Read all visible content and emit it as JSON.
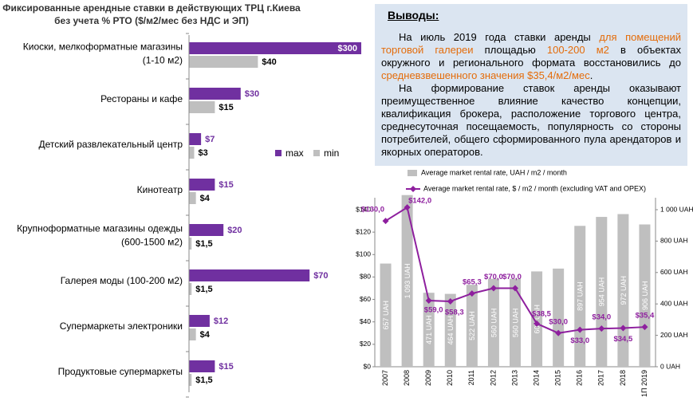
{
  "chart_data": [
    {
      "type": "barh",
      "title": [
        "Фиксированные арендные ставки в действующих ТРЦ г.Киева",
        "без учета % РТО ($/м2/мес без НДС и ЭП)"
      ],
      "categories": [
        "Киоски, мелкоформатные магазины\n(1-10 м2)",
        "Рестораны и кафе",
        "Детский развлекательный центр",
        "Кинотеатр",
        "Крупноформатные магазины одежды\n(600-1500 м2)",
        "Галерея моды (100-200 м2)",
        "Супермаркеты электроники",
        "Продуктовые супермаркеты"
      ],
      "series": [
        {
          "name": "max",
          "color": "#7030a0",
          "values": [
            300,
            30,
            7,
            15,
            20,
            70,
            12,
            15
          ],
          "value_labels": [
            "$300",
            "$30",
            "$7",
            "$15",
            "$20",
            "$70",
            "$12",
            "$15"
          ]
        },
        {
          "name": "min",
          "color": "#bfbfbf",
          "values": [
            40,
            15,
            3,
            4,
            1.5,
            1.5,
            4,
            1.5
          ],
          "value_labels": [
            "$40",
            "$15",
            "$3",
            "$4",
            "$1,5",
            "$1,5",
            "$4",
            "$1,5"
          ]
        }
      ],
      "xlim": [
        0,
        100
      ]
    },
    {
      "type": "combo",
      "categories": [
        "2007",
        "2008",
        "2009",
        "2010",
        "2011",
        "2012",
        "2013",
        "2014",
        "2015",
        "2016",
        "2017",
        "2018",
        "1П 2019"
      ],
      "series": [
        {
          "name": "Average market rental rate, UAH / m2 / month",
          "type": "bar",
          "axis": "y2",
          "color": "#bfbfbf",
          "values": [
            657,
            1093,
            471,
            464,
            522,
            560,
            560,
            607,
            625,
            897,
            954,
            972,
            906
          ],
          "value_labels": [
            "657 UAH",
            "1 093 UAH",
            "471 UAH",
            "464 UAH",
            "522 UAH",
            "560 UAH",
            "560 UAH",
            "607 UAH",
            null,
            "897 UAH",
            "954 UAH",
            "972 UAH",
            "906 UAH"
          ]
        },
        {
          "name": "Average market rental rate, $ / m2 / month (excluding VAT and OPEX)",
          "type": "line",
          "color": "#8e1f9e",
          "values": [
            130,
            142,
            59,
            58.3,
            65.3,
            70,
            70,
            38.5,
            30,
            33,
            34,
            34.5,
            35.4
          ],
          "value_labels": [
            "$130,0",
            "$142,0",
            "$59,0",
            "$58,3",
            "$65,3",
            "$70,0",
            "$70,0",
            "$38,5",
            "$30,0",
            "$33,0",
            "$34,0",
            "$34,5",
            "$35,4"
          ]
        }
      ],
      "ylim": [
        0,
        140
      ],
      "yticks": [
        {
          "value": 0,
          "label": "$0"
        },
        {
          "value": 20,
          "label": "$20"
        },
        {
          "value": 40,
          "label": "$40"
        },
        {
          "value": 60,
          "label": "$60"
        },
        {
          "value": 80,
          "label": "$80"
        },
        {
          "value": 100,
          "label": "$100"
        },
        {
          "value": 120,
          "label": "$120"
        },
        {
          "value": 140,
          "label": "$140"
        }
      ],
      "y2lim": [
        0,
        1000
      ],
      "y2ticks": [
        {
          "value": 0,
          "label": "0 UAH"
        },
        {
          "value": 200,
          "label": "200 UAH"
        },
        {
          "value": 400,
          "label": "400 UAH"
        },
        {
          "value": 600,
          "label": "600 UAH"
        },
        {
          "value": 800,
          "label": "800 UAH"
        },
        {
          "value": 1000,
          "label": "1 000 UAH"
        }
      ]
    }
  ],
  "conclusions": {
    "heading": "Выводы:",
    "paragraphs": [
      [
        {
          "text": "На июль 2019 года ставки аренды "
        },
        {
          "text": "для помещений торговой галереи",
          "color": "#e46c0a"
        },
        {
          "text": " площадью "
        },
        {
          "text": "100-200 м2",
          "color": "#e46c0a"
        },
        {
          "text": " в объектах окружного и регионального формата восстановились до "
        },
        {
          "text": "средневзвешенного значения $35,4/м2/мес",
          "color": "#e46c0a"
        },
        {
          "text": "."
        }
      ],
      [
        {
          "text": "На формирование ставок аренды оказывают преимущественное влияние качество концепции, квалификация брокера, расположение торгового центра, среднесуточная посещаемость, популярность со стороны потребителей, общего сформированного пула арендаторов и якорных операторов."
        }
      ]
    ]
  }
}
